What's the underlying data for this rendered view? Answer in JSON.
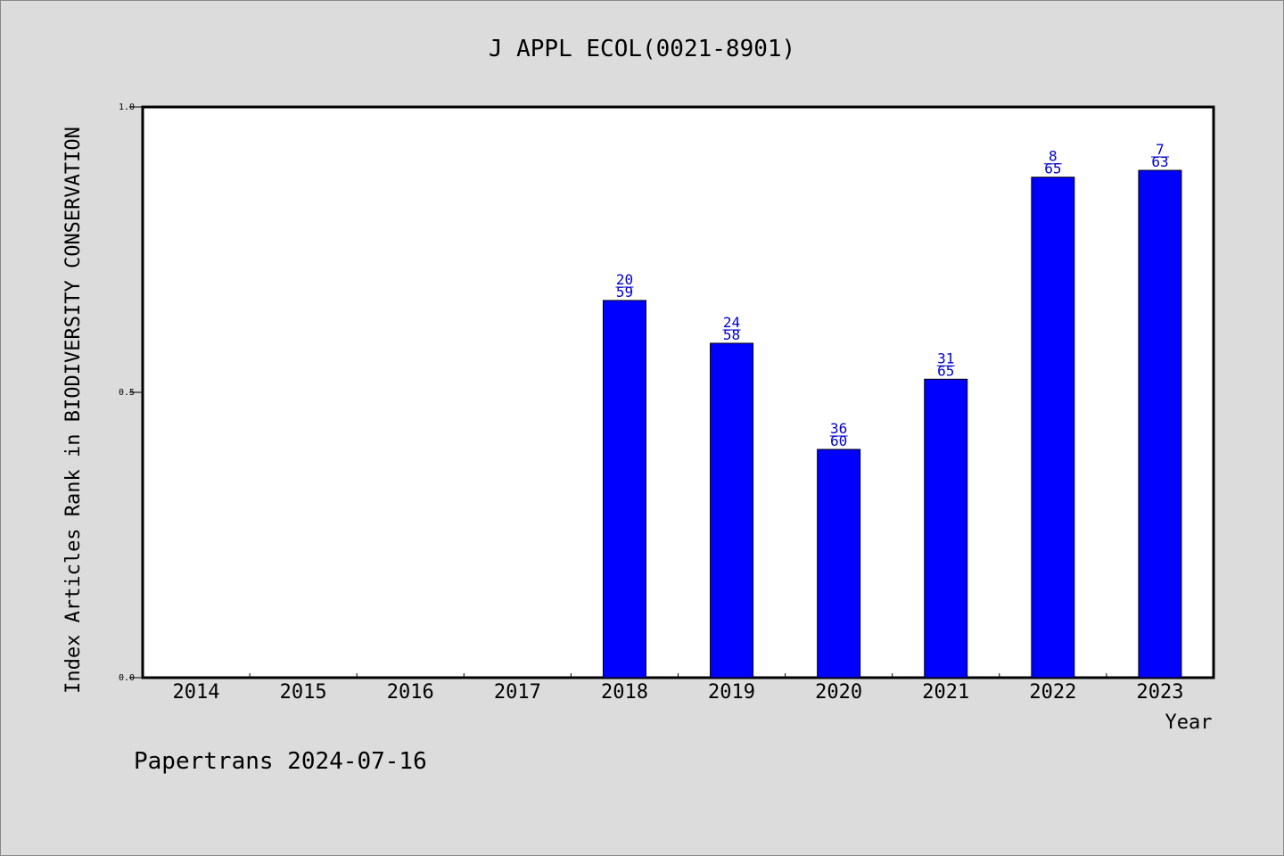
{
  "footer": {
    "watermark": "Papertrans 2024-07-16"
  },
  "colors": {
    "background": "#dcdcdc",
    "plot_bg": "#ffffff",
    "bar": "#0000ff",
    "label": "#0000cd",
    "axis": "#000000"
  },
  "chart_data": {
    "type": "bar",
    "title": "J APPL ECOL(0021-8901)",
    "xlabel": "Year",
    "ylabel": "Index Articles Rank in BIODIVERSITY CONSERVATION",
    "ylim": [
      0,
      1.0
    ],
    "yticks": [
      "0.0",
      "0.5",
      "1.0"
    ],
    "grid": false,
    "categories": [
      "2014",
      "2015",
      "2016",
      "2017",
      "2018",
      "2019",
      "2020",
      "2021",
      "2022",
      "2023"
    ],
    "values": [
      null,
      null,
      null,
      null,
      0.661,
      0.586,
      0.4,
      0.523,
      0.877,
      0.889
    ],
    "rank_labels": [
      "",
      "",
      "",
      "",
      "20",
      "24",
      "36",
      "31",
      "8",
      "7"
    ],
    "total_labels": [
      "",
      "",
      "",
      "",
      "59",
      "58",
      "60",
      "65",
      "65",
      "63"
    ]
  }
}
